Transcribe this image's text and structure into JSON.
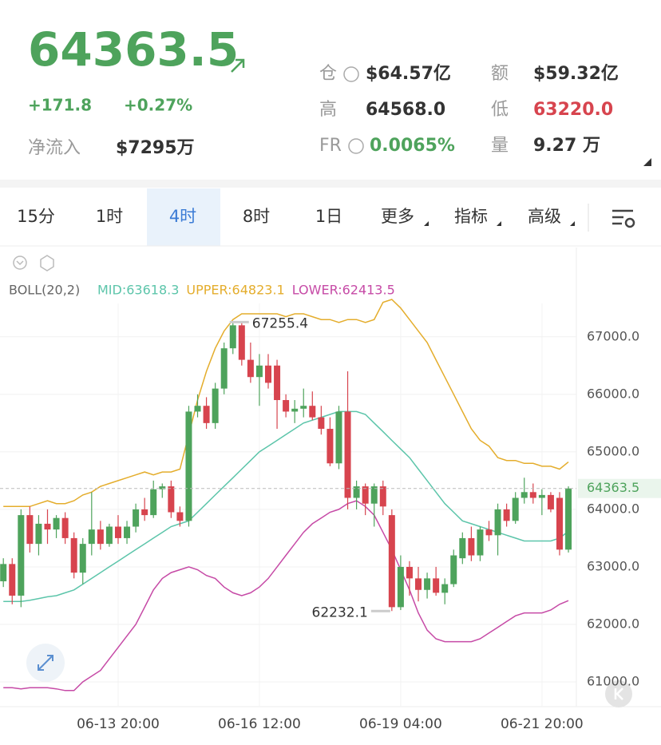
{
  "header": {
    "price": "64363.5",
    "change": "+171.8",
    "change_pct": "+0.27%",
    "net_inflow_label": "净流入",
    "net_inflow": "$7295万",
    "stats": [
      {
        "label": "仓",
        "value": "$64.57亿"
      },
      {
        "label": "额",
        "value": "$59.32亿"
      },
      {
        "label": "高",
        "value": "64568.0"
      },
      {
        "label": "低",
        "value": "63220.0"
      },
      {
        "label": "FR",
        "value": "0.0065%"
      },
      {
        "label": "量",
        "value": "9.27 万"
      }
    ]
  },
  "tabs": [
    "15分",
    "1时",
    "4时",
    "8时",
    "1日",
    "更多",
    "指标",
    "高级"
  ],
  "chart_data": {
    "type": "candlestick",
    "indicator": "BOLL(20,2)",
    "categories": [
      null,
      null,
      null,
      null,
      null,
      null,
      null,
      null,
      null,
      null,
      null,
      null,
      null,
      "06-13 20:00",
      null,
      null,
      null,
      null,
      null,
      null,
      null,
      null,
      null,
      null,
      null,
      null,
      null,
      null,
      null,
      "06-16 12:00",
      null,
      null,
      null,
      null,
      null,
      null,
      null,
      null,
      null,
      null,
      null,
      null,
      null,
      null,
      null,
      "06-19 04:00",
      null,
      null,
      null,
      null,
      null,
      null,
      null,
      null,
      null,
      null,
      null,
      null,
      null,
      null,
      null,
      "06-21 20:00",
      null,
      null,
      null
    ],
    "open": [
      62750,
      63050,
      62500,
      63900,
      63400,
      63750,
      63650,
      63850,
      63500,
      62900,
      63400,
      63650,
      63400,
      63700,
      63500,
      63700,
      64000,
      63900,
      64350,
      64400,
      63950,
      63800,
      65700,
      65800,
      65500,
      66100,
      66800,
      67200,
      66600,
      66300,
      66500,
      66500,
      65900,
      65700,
      65750,
      65800,
      65600,
      65400,
      64800,
      65700,
      64200,
      64400,
      64100,
      64400,
      63900,
      62300,
      63000,
      62800,
      62600,
      62800,
      62550,
      62700,
      63150,
      63500,
      63200,
      63650,
      63550,
      64000,
      63800,
      64200,
      64300,
      64200,
      64250,
      64200,
      63300
    ],
    "high": [
      63150,
      63150,
      64000,
      64050,
      63900,
      64000,
      63900,
      63950,
      63600,
      63500,
      64300,
      63800,
      63750,
      63900,
      63800,
      64100,
      64200,
      64500,
      64450,
      64500,
      64050,
      65800,
      66000,
      65950,
      66200,
      66900,
      67255.4,
      67250,
      66900,
      66700,
      66700,
      66600,
      66000,
      65900,
      66100,
      66050,
      65800,
      65600,
      65800,
      66400,
      64500,
      64450,
      64450,
      64500,
      64000,
      63200,
      63100,
      63000,
      62900,
      63000,
      62800,
      63300,
      63600,
      63700,
      63700,
      63800,
      64100,
      64100,
      64300,
      64550,
      64450,
      64350,
      64300,
      64300,
      64400
    ],
    "low": [
      62650,
      62350,
      62300,
      63250,
      63200,
      63400,
      63500,
      63400,
      62800,
      62700,
      63200,
      63300,
      63350,
      63400,
      63400,
      63600,
      63800,
      63850,
      64200,
      63850,
      63700,
      63700,
      65600,
      65400,
      65400,
      66000,
      66700,
      66500,
      66200,
      65800,
      66100,
      65400,
      65600,
      65500,
      65600,
      65550,
      65300,
      64750,
      64700,
      64000,
      64000,
      63900,
      63700,
      63900,
      62232.1,
      62250,
      62500,
      62400,
      62450,
      62500,
      62350,
      62650,
      63050,
      63100,
      63100,
      63450,
      63200,
      63700,
      63750,
      64100,
      64100,
      63900,
      63950,
      63200,
      63250
    ],
    "close": [
      63050,
      62500,
      63900,
      63400,
      63750,
      63650,
      63850,
      63500,
      62900,
      63400,
      63650,
      63400,
      63700,
      63500,
      63700,
      64000,
      63900,
      64350,
      64400,
      63950,
      63800,
      65700,
      65800,
      65500,
      66100,
      66800,
      67200,
      66600,
      66300,
      66500,
      66200,
      65900,
      65700,
      65750,
      65800,
      65600,
      65400,
      64800,
      65700,
      64200,
      64400,
      64100,
      64400,
      64050,
      62300,
      63000,
      62800,
      62600,
      62800,
      62550,
      62700,
      63200,
      63500,
      63200,
      63650,
      63550,
      64000,
      63800,
      64200,
      64300,
      64200,
      64250,
      64000,
      63300,
      64363.5
    ],
    "up_color": "#4ea35c",
    "down_color": "#d7444e",
    "series": [
      {
        "name": "MID:63618.3",
        "color": "#5cc5aa",
        "values": [
          62400,
          62400,
          62400,
          62420,
          62450,
          62480,
          62500,
          62550,
          62600,
          62700,
          62800,
          62900,
          63000,
          63100,
          63200,
          63300,
          63400,
          63500,
          63600,
          63700,
          63750,
          63800,
          63950,
          64100,
          64250,
          64400,
          64550,
          64700,
          64850,
          65000,
          65100,
          65200,
          65300,
          65400,
          65500,
          65550,
          65600,
          65650,
          65700,
          65700,
          65700,
          65650,
          65500,
          65350,
          65200,
          65050,
          64900,
          64700,
          64500,
          64300,
          64100,
          63950,
          63800,
          63750,
          63700,
          63650,
          63600,
          63550,
          63500,
          63450,
          63450,
          63450,
          63450,
          63500,
          63618.3
        ]
      },
      {
        "name": "UPPER:64823.1",
        "color": "#e4ad2c",
        "values": [
          64050,
          64050,
          64050,
          64050,
          64100,
          64150,
          64100,
          64100,
          64150,
          64250,
          64300,
          64400,
          64450,
          64500,
          64550,
          64600,
          64650,
          64600,
          64650,
          64650,
          64700,
          65300,
          65900,
          66400,
          66800,
          67100,
          67300,
          67400,
          67400,
          67400,
          67400,
          67400,
          67350,
          67400,
          67400,
          67350,
          67300,
          67300,
          67250,
          67300,
          67300,
          67250,
          67300,
          67600,
          67650,
          67500,
          67300,
          67100,
          66900,
          66600,
          66300,
          66000,
          65700,
          65400,
          65200,
          65100,
          64900,
          64850,
          64850,
          64800,
          64800,
          64750,
          64750,
          64700,
          64823.1
        ]
      },
      {
        "name": "LOWER:62413.5",
        "color": "#c64aa6",
        "values": [
          60900,
          60900,
          60880,
          60900,
          60900,
          60900,
          60880,
          60850,
          60850,
          61000,
          61100,
          61200,
          61400,
          61600,
          61800,
          62000,
          62300,
          62600,
          62800,
          62900,
          62950,
          63000,
          62950,
          62850,
          62800,
          62650,
          62550,
          62500,
          62550,
          62650,
          62800,
          63000,
          63200,
          63400,
          63600,
          63750,
          63850,
          63950,
          64000,
          64100,
          64150,
          64050,
          63900,
          63600,
          63300,
          62950,
          62600,
          62200,
          61900,
          61750,
          61700,
          61700,
          61700,
          61700,
          61750,
          61850,
          61950,
          62050,
          62150,
          62200,
          62200,
          62200,
          62250,
          62350,
          62413.5
        ]
      }
    ],
    "ylim": [
      60570,
      67580
    ],
    "yticks": [
      {
        "value": 61000,
        "label": "61000.0"
      },
      {
        "value": 62000,
        "label": "62000.0"
      },
      {
        "value": 63000,
        "label": "63000.0"
      },
      {
        "value": 64000,
        "label": "64000.0"
      },
      {
        "value": 65000,
        "label": "65000.0"
      },
      {
        "value": 66000,
        "label": "66000.0"
      },
      {
        "value": 67000,
        "label": "67000.0"
      }
    ],
    "grid": true
  }
}
